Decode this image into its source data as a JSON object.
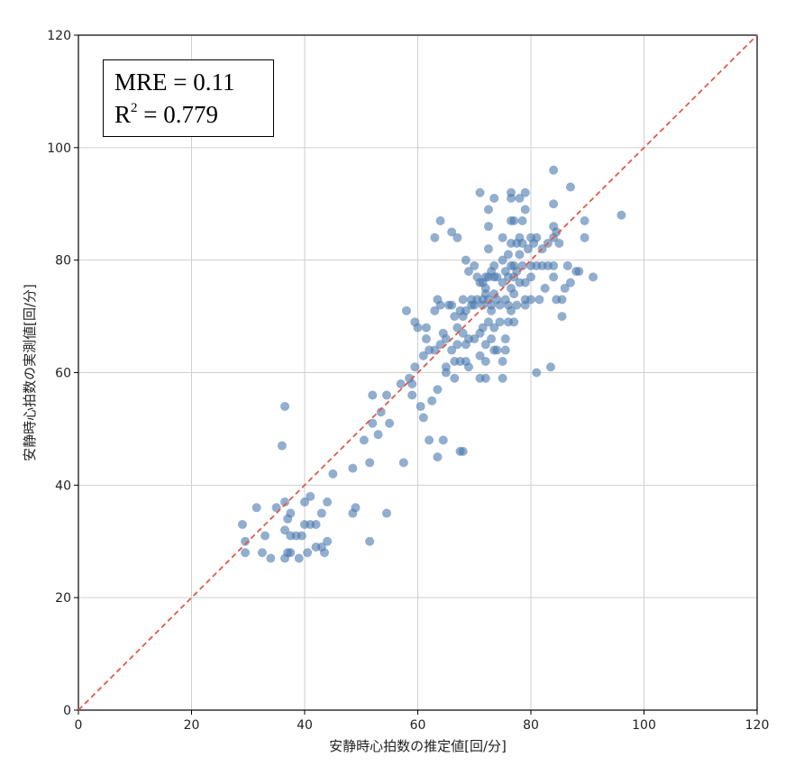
{
  "chart_data": {
    "type": "scatter",
    "xlabel": "安静時心拍数の推定値[回/分]",
    "ylabel": "安静時心拍数の実測値[回/分]",
    "xlim": [
      0,
      120
    ],
    "ylim": [
      0,
      120
    ],
    "xticks": [
      0,
      20,
      40,
      60,
      80,
      100,
      120
    ],
    "yticks": [
      0,
      20,
      40,
      60,
      80,
      100,
      120
    ],
    "grid": true,
    "marker_color": "#4a78ad",
    "reference_line": {
      "style": "dashed",
      "color": "#e05a47",
      "from": [
        0,
        0
      ],
      "to": [
        120,
        120
      ]
    },
    "annotation": {
      "mre_text": "MRE = 0.11",
      "r2_prefix": "R",
      "r2_sup": "2",
      "r2_value": " = 0.779"
    },
    "points": [
      [
        29,
        33
      ],
      [
        29.5,
        30
      ],
      [
        29.5,
        28
      ],
      [
        31.5,
        36
      ],
      [
        32.5,
        28
      ],
      [
        33,
        31
      ],
      [
        34,
        27
      ],
      [
        35,
        36
      ],
      [
        36,
        47
      ],
      [
        36.5,
        54
      ],
      [
        36.5,
        37
      ],
      [
        36.5,
        32
      ],
      [
        36.5,
        27
      ],
      [
        37,
        34
      ],
      [
        37,
        28
      ],
      [
        37.5,
        35
      ],
      [
        37.5,
        31
      ],
      [
        37.5,
        28
      ],
      [
        38.5,
        31
      ],
      [
        39,
        27
      ],
      [
        39.5,
        31
      ],
      [
        40,
        33
      ],
      [
        40,
        37
      ],
      [
        40.5,
        28
      ],
      [
        41,
        33
      ],
      [
        41,
        38
      ],
      [
        42,
        29
      ],
      [
        42,
        33
      ],
      [
        43,
        35
      ],
      [
        43,
        29
      ],
      [
        43.5,
        28
      ],
      [
        44,
        30
      ],
      [
        44,
        37
      ],
      [
        45,
        42
      ],
      [
        48.5,
        43
      ],
      [
        48.5,
        35
      ],
      [
        49,
        36
      ],
      [
        50.5,
        48
      ],
      [
        51.5,
        30
      ],
      [
        51.5,
        44
      ],
      [
        52,
        51
      ],
      [
        52,
        56
      ],
      [
        53,
        49
      ],
      [
        53.5,
        53
      ],
      [
        54.5,
        56
      ],
      [
        54.5,
        35
      ],
      [
        55,
        51
      ],
      [
        57,
        58
      ],
      [
        57.5,
        44
      ],
      [
        58,
        71
      ],
      [
        58.5,
        59
      ],
      [
        59,
        56
      ],
      [
        59,
        58
      ],
      [
        59.5,
        61
      ],
      [
        59.5,
        69
      ],
      [
        60,
        68
      ],
      [
        60.5,
        54
      ],
      [
        61,
        63
      ],
      [
        61,
        52
      ],
      [
        61.5,
        66
      ],
      [
        61.5,
        68
      ],
      [
        62,
        64
      ],
      [
        62,
        48
      ],
      [
        62.5,
        55
      ],
      [
        63,
        64
      ],
      [
        63,
        71
      ],
      [
        63,
        84
      ],
      [
        63.5,
        57
      ],
      [
        63.5,
        45
      ],
      [
        63.5,
        73
      ],
      [
        64,
        87
      ],
      [
        64,
        65
      ],
      [
        64,
        72
      ],
      [
        64.5,
        48
      ],
      [
        64.5,
        67
      ],
      [
        65,
        60
      ],
      [
        65,
        61
      ],
      [
        65,
        66
      ],
      [
        65.5,
        72
      ],
      [
        66,
        85
      ],
      [
        66,
        64
      ],
      [
        66,
        72
      ],
      [
        66.5,
        70
      ],
      [
        66.5,
        62
      ],
      [
        66.5,
        59
      ],
      [
        67,
        84
      ],
      [
        67,
        68
      ],
      [
        67,
        65
      ],
      [
        67.5,
        71
      ],
      [
        67.5,
        46
      ],
      [
        67.5,
        62
      ],
      [
        68,
        46
      ],
      [
        68,
        67
      ],
      [
        68,
        73
      ],
      [
        68,
        70
      ],
      [
        68.5,
        71
      ],
      [
        68.5,
        80
      ],
      [
        68.5,
        62
      ],
      [
        68.5,
        65
      ],
      [
        69,
        66
      ],
      [
        69,
        78
      ],
      [
        69,
        61
      ],
      [
        69.5,
        72
      ],
      [
        69.5,
        73
      ],
      [
        70,
        66
      ],
      [
        70,
        72
      ],
      [
        70,
        79
      ],
      [
        70.5,
        73
      ],
      [
        70.5,
        77
      ],
      [
        71,
        76
      ],
      [
        71,
        92
      ],
      [
        71,
        67
      ],
      [
        71,
        59
      ],
      [
        71,
        63
      ],
      [
        71.5,
        76
      ],
      [
        71.5,
        73
      ],
      [
        71.5,
        68
      ],
      [
        71.5,
        72
      ],
      [
        72,
        77
      ],
      [
        72,
        75
      ],
      [
        72,
        74
      ],
      [
        72,
        65
      ],
      [
        72,
        62
      ],
      [
        72,
        59
      ],
      [
        72.5,
        89
      ],
      [
        72.5,
        86
      ],
      [
        72.5,
        82
      ],
      [
        72.5,
        77
      ],
      [
        72.5,
        73
      ],
      [
        72.5,
        69
      ],
      [
        73,
        78
      ],
      [
        73,
        72
      ],
      [
        73,
        71
      ],
      [
        73,
        66
      ],
      [
        73.5,
        91
      ],
      [
        73.5,
        79
      ],
      [
        73.5,
        77
      ],
      [
        73.5,
        74
      ],
      [
        73.5,
        68
      ],
      [
        73.5,
        64
      ],
      [
        74,
        77
      ],
      [
        74,
        73
      ],
      [
        74,
        64
      ],
      [
        74.5,
        72
      ],
      [
        74.5,
        69
      ],
      [
        75,
        84
      ],
      [
        75,
        80
      ],
      [
        75,
        76
      ],
      [
        75,
        62
      ],
      [
        75,
        59
      ],
      [
        75.5,
        78
      ],
      [
        75.5,
        73
      ],
      [
        75.5,
        66
      ],
      [
        75.5,
        64
      ],
      [
        76,
        77
      ],
      [
        76,
        72
      ],
      [
        76,
        69
      ],
      [
        76,
        81
      ],
      [
        76.5,
        92
      ],
      [
        76.5,
        91
      ],
      [
        76.5,
        87
      ],
      [
        76.5,
        83
      ],
      [
        76.5,
        79
      ],
      [
        76.5,
        75
      ],
      [
        76.5,
        71
      ],
      [
        77,
        87
      ],
      [
        77,
        79
      ],
      [
        77,
        77
      ],
      [
        77,
        74
      ],
      [
        77,
        69
      ],
      [
        77.5,
        78
      ],
      [
        77.5,
        72
      ],
      [
        77.5,
        83
      ],
      [
        78,
        91
      ],
      [
        78,
        84
      ],
      [
        78,
        81
      ],
      [
        78,
        76
      ],
      [
        78.5,
        83
      ],
      [
        78.5,
        87
      ],
      [
        78.5,
        79
      ],
      [
        79,
        92
      ],
      [
        79,
        89
      ],
      [
        79,
        76
      ],
      [
        79,
        72
      ],
      [
        79,
        73
      ],
      [
        79.5,
        82
      ],
      [
        80,
        84
      ],
      [
        80,
        79
      ],
      [
        80,
        73
      ],
      [
        80,
        77
      ],
      [
        80.5,
        83
      ],
      [
        81,
        79
      ],
      [
        81,
        60
      ],
      [
        81,
        84
      ],
      [
        81.5,
        73
      ],
      [
        82,
        82
      ],
      [
        82,
        79
      ],
      [
        82.5,
        75
      ],
      [
        83,
        83
      ],
      [
        83,
        79
      ],
      [
        83.5,
        61
      ],
      [
        84,
        84
      ],
      [
        84,
        86
      ],
      [
        84,
        96
      ],
      [
        84,
        90
      ],
      [
        84,
        79
      ],
      [
        84,
        77
      ],
      [
        84.5,
        73
      ],
      [
        84.5,
        85
      ],
      [
        85,
        83
      ],
      [
        85.5,
        73
      ],
      [
        85.5,
        70
      ],
      [
        86,
        75
      ],
      [
        86.5,
        79
      ],
      [
        87,
        76
      ],
      [
        87,
        93
      ],
      [
        88,
        78
      ],
      [
        88.5,
        78
      ],
      [
        89.5,
        87
      ],
      [
        89.5,
        84
      ],
      [
        91,
        77
      ],
      [
        96,
        88
      ]
    ]
  }
}
